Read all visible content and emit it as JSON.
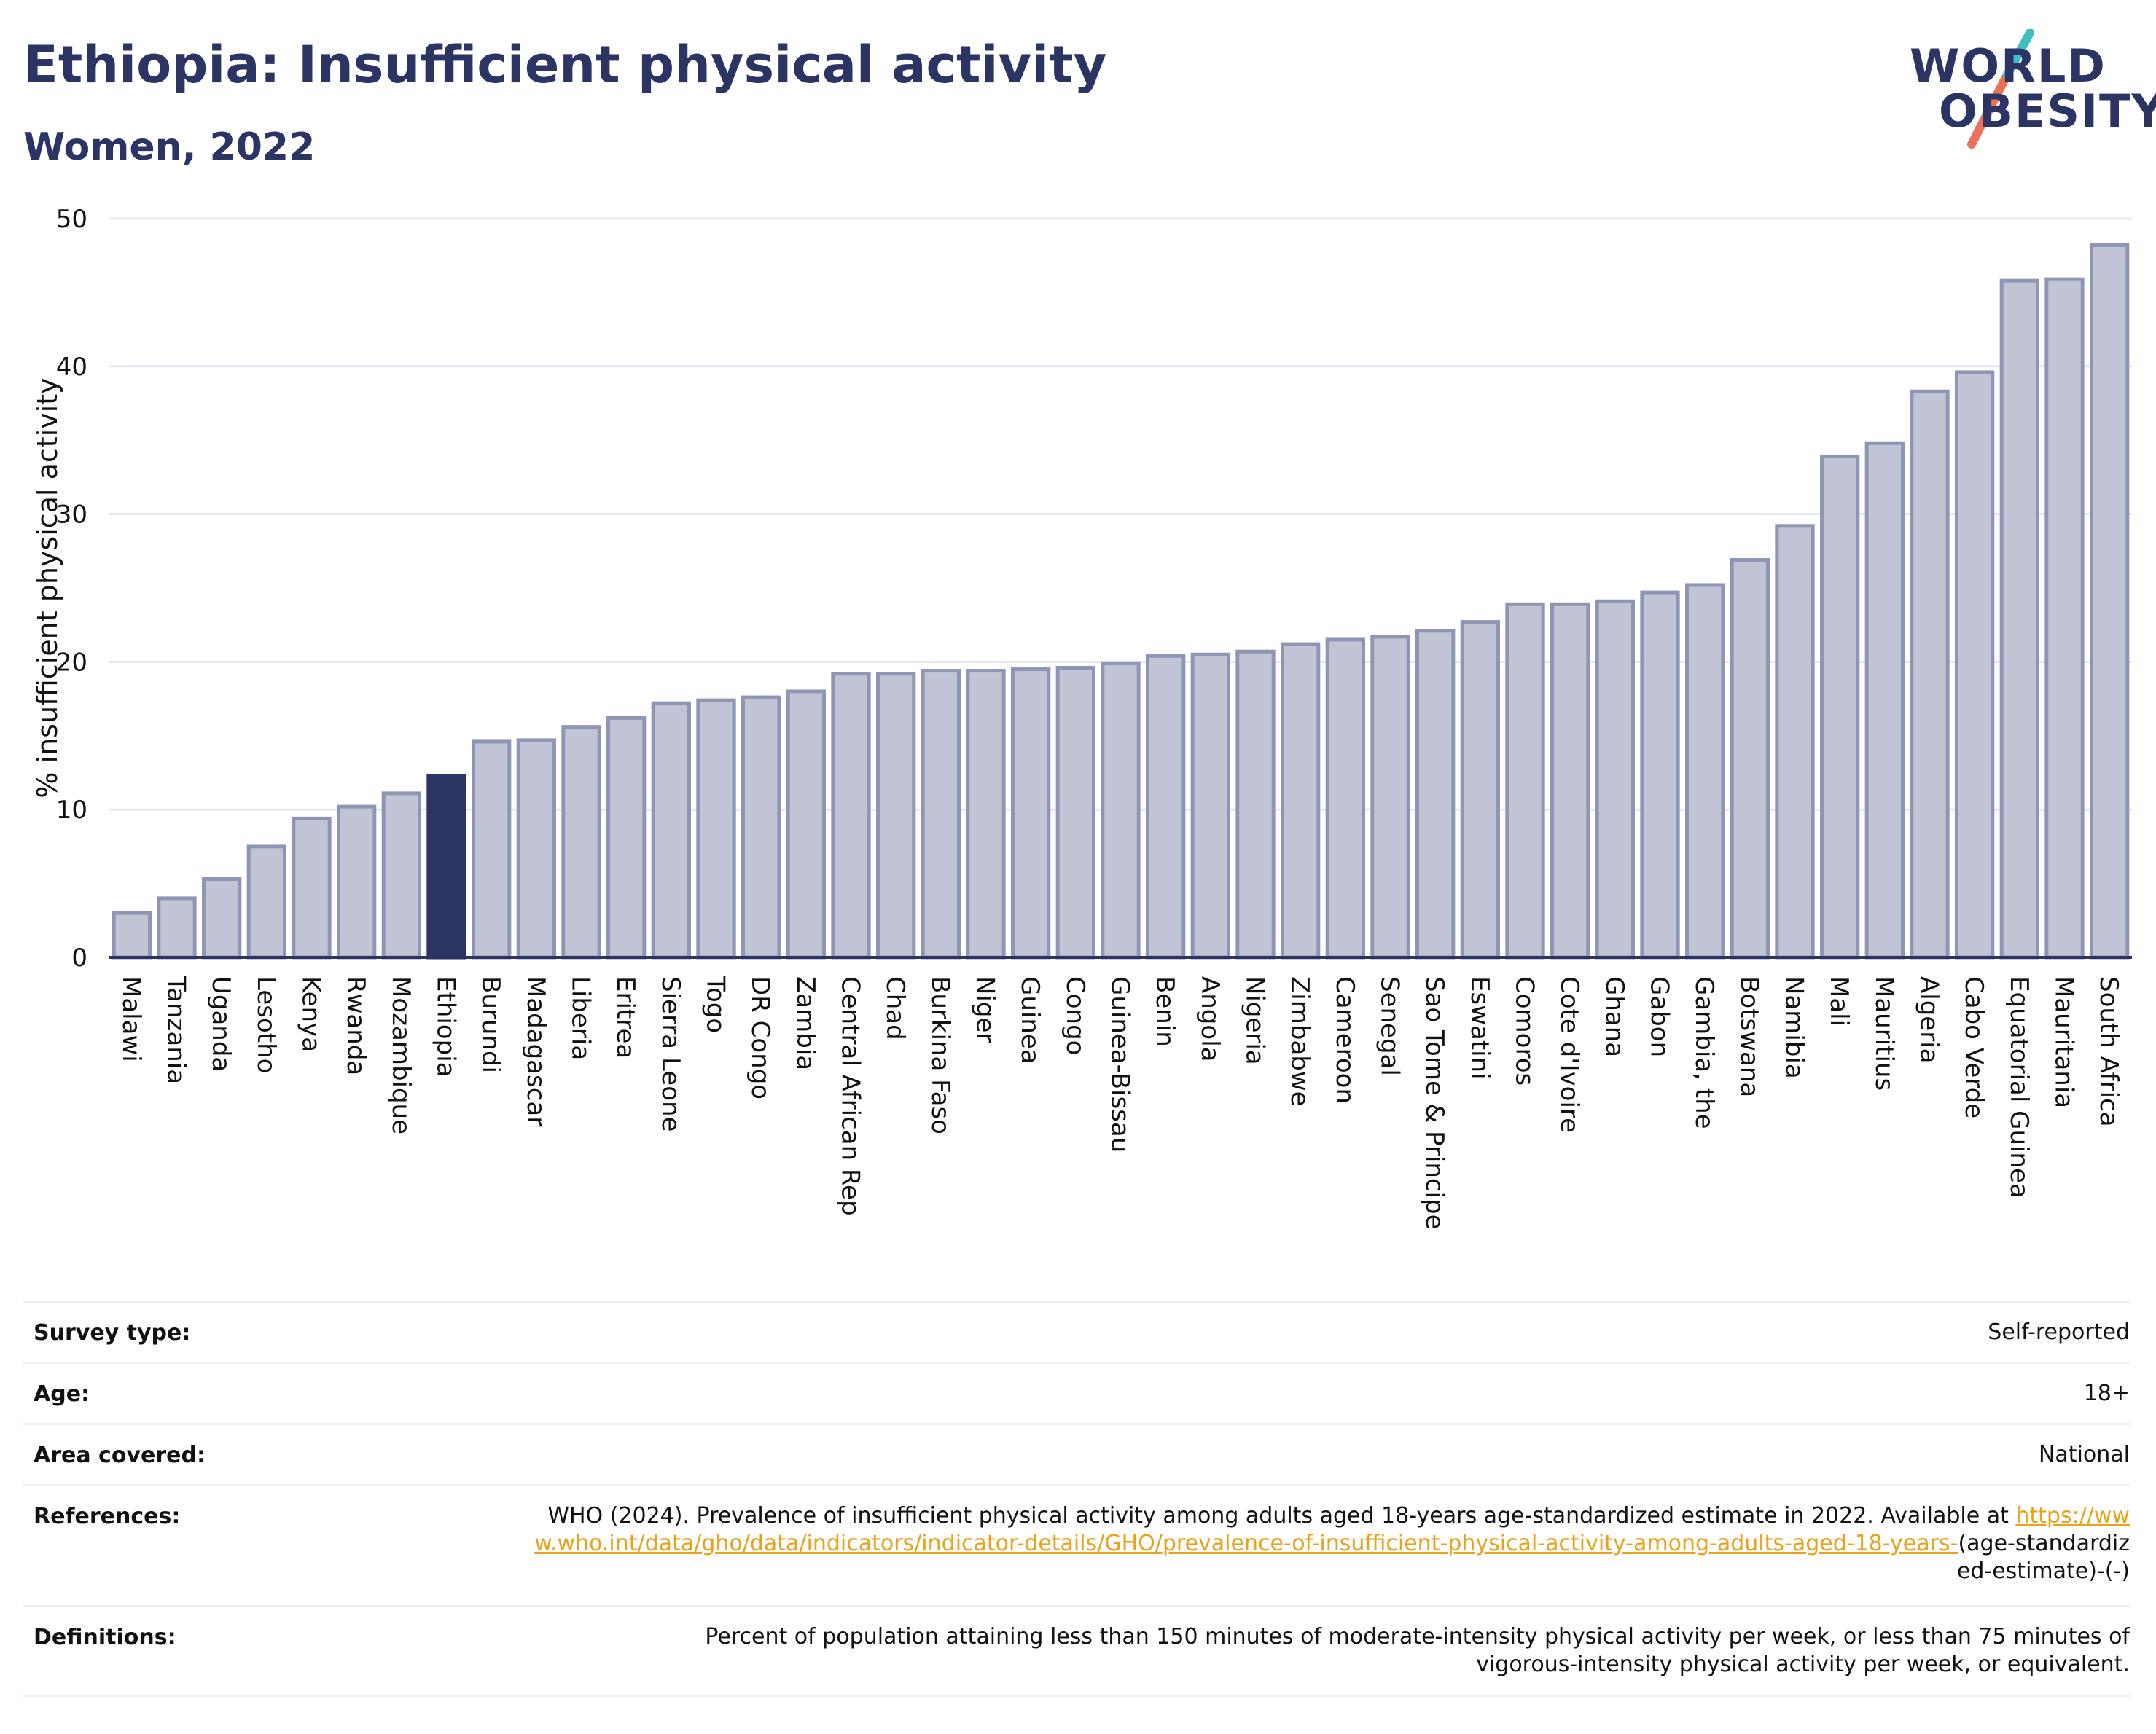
{
  "header": {
    "title": "Ethiopia: Insufficient physical activity",
    "subtitle": "Women, 2022"
  },
  "logo": {
    "line1": "WORLD",
    "line2": "OBESITY",
    "colors": {
      "text": "#2b3463",
      "slash_top": "#3dbfbf",
      "slash_bottom": "#e8735a"
    }
  },
  "colors": {
    "bar": "#c0c4d4",
    "bar_border": "#8f96b4",
    "highlight": "#2b3463",
    "grid": "#e4e7ef",
    "axis": "#2b3463",
    "link": "#e9a21a"
  },
  "chart_data": {
    "type": "bar",
    "ylabel": "% insufficient physical activity",
    "ylim": [
      0,
      50
    ],
    "yticks": [
      0,
      10,
      20,
      30,
      40,
      50
    ],
    "grid": true,
    "highlight": "Ethiopia",
    "categories": [
      "Malawi",
      "Tanzania",
      "Uganda",
      "Lesotho",
      "Kenya",
      "Rwanda",
      "Mozambique",
      "Ethiopia",
      "Burundi",
      "Madagascar",
      "Liberia",
      "Eritrea",
      "Sierra Leone",
      "Togo",
      "DR Congo",
      "Zambia",
      "Central African Rep",
      "Chad",
      "Burkina Faso",
      "Niger",
      "Guinea",
      "Congo",
      "Guinea-Bissau",
      "Benin",
      "Angola",
      "Nigeria",
      "Zimbabwe",
      "Cameroon",
      "Senegal",
      "Sao Tome & Principe",
      "Eswatini",
      "Comoros",
      "Cote d'Ivoire",
      "Ghana",
      "Gabon",
      "Gambia, the",
      "Botswana",
      "Namibia",
      "Mali",
      "Mauritius",
      "Algeria",
      "Cabo Verde",
      "Equatorial Guinea",
      "Mauritania",
      "South Africa"
    ],
    "values": [
      3.0,
      4.0,
      5.3,
      7.5,
      9.4,
      10.2,
      11.1,
      12.3,
      14.6,
      14.7,
      15.6,
      16.2,
      17.2,
      17.4,
      17.6,
      18.0,
      19.2,
      19.2,
      19.4,
      19.4,
      19.5,
      19.6,
      19.9,
      20.4,
      20.5,
      20.7,
      21.2,
      21.5,
      21.7,
      22.1,
      22.7,
      23.9,
      23.9,
      24.1,
      24.7,
      25.2,
      26.9,
      29.2,
      33.9,
      34.8,
      38.3,
      39.6,
      45.8,
      45.9,
      48.2
    ]
  },
  "meta": {
    "survey_type": {
      "label": "Survey type:",
      "value": "Self-reported"
    },
    "age": {
      "label": "Age:",
      "value": "18+"
    },
    "area": {
      "label": "Area covered:",
      "value": "National"
    },
    "references": {
      "label": "References:",
      "text": "WHO (2024). Prevalence of insufficient physical activity among adults aged 18-years age-standardized estimate in 2022. Available at ",
      "link": "https://www.who.int/data/gho/data/indicators/indicator-details/GHO/prevalence-of-insufficient-physical-activity-among-adults-aged-18-years-",
      "suffix": "(age-standardized-estimate)-(-)"
    },
    "definitions": {
      "label": "Definitions:",
      "value": "Percent of population attaining less than 150 minutes of moderate-intensity physical activity per week, or less than 75 minutes of vigorous-intensity physical activity per week, or equivalent."
    }
  }
}
